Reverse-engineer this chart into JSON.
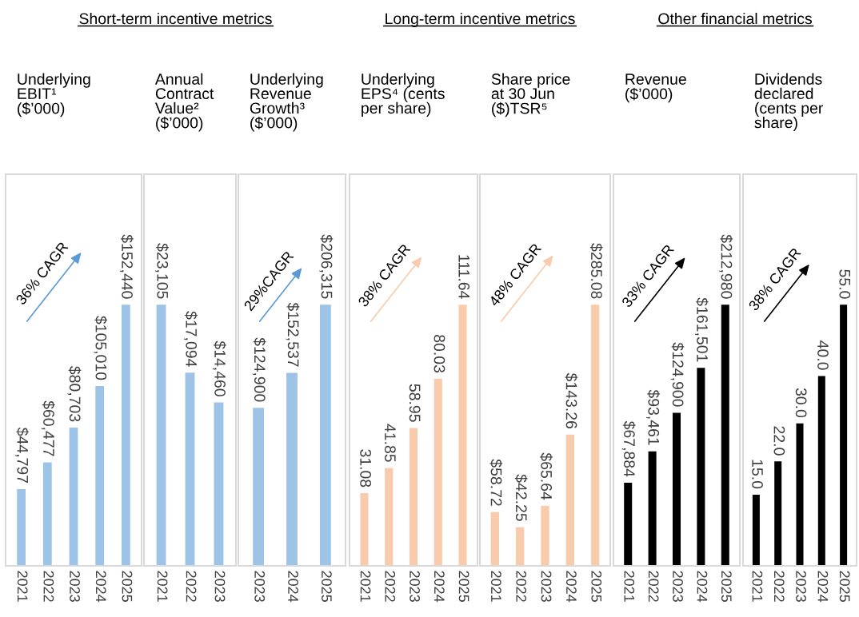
{
  "chart_data": [
    {
      "type": "bar",
      "subtitle": "Short-term incentive metrics",
      "title": "Underlying\nEBIT¹\n($’000)",
      "categories": [
        "2021",
        "2022",
        "2023",
        "2024",
        "2025"
      ],
      "values": [
        44797,
        60477,
        80703,
        105010,
        152440
      ],
      "value_labels": [
        "$44,797",
        "$60,477",
        "$80,703",
        "$105,010",
        "$152,440"
      ],
      "color": "#9dc3e6",
      "annotations": [
        "36% CAGR"
      ],
      "tick_labels": "x"
    },
    {
      "type": "bar",
      "title": "Annual\nContract\nValue²\n($’000)",
      "categories": [
        "2021",
        "2022",
        "2023"
      ],
      "values": [
        23105,
        17094,
        14460
      ],
      "value_labels": [
        "$23,105",
        "$17,094",
        "$14,460"
      ],
      "color": "#9dc3e6",
      "tick_labels": "x"
    },
    {
      "type": "bar",
      "title": "Underlying\nRevenue\nGrowth³\n($’000)",
      "categories": [
        "2023",
        "2024",
        "2025"
      ],
      "values": [
        124900,
        152537,
        206315
      ],
      "value_labels": [
        "$124,900",
        "$152,537",
        "$206,315"
      ],
      "color": "#9dc3e6",
      "annotations": [
        "29%CAGR"
      ],
      "tick_labels": "x"
    },
    {
      "type": "bar",
      "subtitle": "Long-term incentive metrics",
      "title": "Underlying\nEPS⁴ (cents\nper share)",
      "categories": [
        "2021",
        "2022",
        "2023",
        "2024",
        "2025"
      ],
      "values": [
        31.08,
        41.85,
        58.95,
        80.03,
        111.64
      ],
      "value_labels": [
        "31.08",
        "41.85",
        "58.95",
        "80.03",
        "111.64"
      ],
      "color": "#f8cbad",
      "annotations": [
        "38% CAGR"
      ],
      "tick_labels": "x"
    },
    {
      "type": "bar",
      "title": "Share price\nat 30 Jun\n($)TSR⁵",
      "categories": [
        "2021",
        "2022",
        "2023",
        "2024",
        "2025"
      ],
      "values": [
        58.72,
        42.25,
        65.64,
        143.26,
        285.08
      ],
      "value_labels": [
        "$58.72",
        "$42.25",
        "$65.64",
        "$143.26",
        "$285.08"
      ],
      "color": "#f8cbad",
      "annotations": [
        "48% CAGR"
      ],
      "tick_labels": "x"
    },
    {
      "type": "bar",
      "subtitle": "Other financial metrics",
      "title": "Revenue\n($’000)",
      "categories": [
        "2021",
        "2022",
        "2023",
        "2024",
        "2025"
      ],
      "values": [
        67884,
        93461,
        124900,
        161501,
        212980
      ],
      "value_labels": [
        "$67,884",
        "$93,461",
        "$124,900",
        "$161,501",
        "$212,980"
      ],
      "color": "#000000",
      "annotations": [
        "33% CAGR"
      ],
      "tick_labels": "x"
    },
    {
      "type": "bar",
      "title": "Dividends\ndeclared\n(cents per\nshare)",
      "categories": [
        "2021",
        "2022",
        "2023",
        "2024",
        "2025"
      ],
      "values": [
        15.0,
        22.0,
        30.0,
        40.0,
        55.0
      ],
      "value_labels": [
        "15.0",
        "22.0",
        "30.0",
        "40.0",
        "55.0"
      ],
      "color": "#000000",
      "annotations": [
        "38% CAGR"
      ],
      "tick_labels": "x"
    }
  ]
}
